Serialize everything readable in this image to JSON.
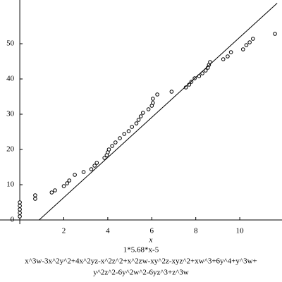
{
  "chart_data": {
    "type": "scatter",
    "x_label": "x",
    "captions": [
      "1*5.68*x-5",
      "x^3w-3x^2y^2+4x^2yz-x^2z^2+x^2zw-xy^2z-xyz^2+xw^3+6y^4+y^3w+",
      "y^2z^2-6y^2w^2-6yz^3+z^3w"
    ],
    "xlim": [
      -0.9,
      11.92
    ],
    "ylim": [
      -1.2,
      62.4
    ],
    "xticks": [
      2,
      4,
      6,
      8,
      10
    ],
    "yticks": [
      0,
      10,
      20,
      30,
      40,
      50
    ],
    "series": [
      {
        "kind": "points",
        "color": "#000000",
        "x": [
          0,
          0,
          0,
          0,
          0,
          0.7,
          0.7,
          1.45,
          1.6,
          2.0,
          2.15,
          2.25,
          2.5,
          2.9,
          3.25,
          3.4,
          3.5,
          3.85,
          3.95,
          4.0,
          4.05,
          4.2,
          4.35,
          4.55,
          4.75,
          4.95,
          5.1,
          5.3,
          5.4,
          5.5,
          5.6,
          5.85,
          6.0,
          6.05,
          6.05,
          6.25,
          6.9,
          7.55,
          7.7,
          7.8,
          7.95,
          8.15,
          8.3,
          8.45,
          8.55,
          8.6,
          8.65,
          9.25,
          9.45,
          9.6,
          10.15,
          10.3,
          10.45,
          10.6,
          11.6
        ],
        "y": [
          1,
          2,
          3,
          4,
          5,
          6,
          7,
          7.8,
          8.4,
          9.6,
          10.4,
          11.2,
          12.8,
          13.6,
          14.4,
          15.4,
          16.2,
          17.6,
          18.4,
          19.2,
          20,
          21,
          22,
          23.2,
          24.4,
          25.2,
          26.4,
          27.4,
          28.4,
          29.4,
          30.4,
          31.4,
          32.4,
          33.2,
          34.4,
          35.6,
          36.4,
          37.6,
          38.4,
          39.2,
          40.2,
          40.8,
          41.6,
          42.4,
          43.2,
          44,
          44.8,
          45.6,
          46.4,
          47.6,
          48.4,
          49.6,
          50.4,
          51.4,
          52.8
        ]
      },
      {
        "kind": "line",
        "color": "#000000",
        "x": [
          0.88,
          11.7
        ],
        "y": [
          0,
          61.5
        ]
      }
    ]
  }
}
